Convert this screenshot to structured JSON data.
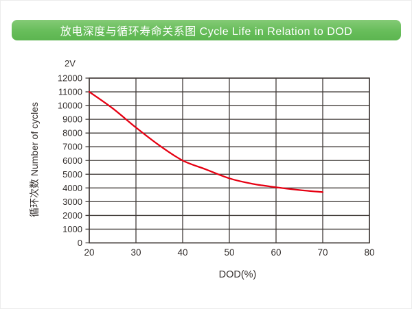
{
  "banner": {
    "title": "放电深度与循环寿命关系图 Cycle Life in Relation to DOD",
    "bg_top": "#84ca76",
    "bg_bottom": "#5cb550",
    "text_color": "#ffffff"
  },
  "chart_data": {
    "type": "line",
    "series_label": "2V",
    "x": [
      20,
      25,
      30,
      35,
      40,
      45,
      50,
      55,
      60,
      65,
      70
    ],
    "y": [
      11000,
      9800,
      8400,
      7100,
      6000,
      5350,
      4700,
      4300,
      4050,
      3850,
      3700
    ],
    "xlabel": "DOD(%)",
    "ylabel": "循环次数 Number of cycles",
    "xlim": [
      20,
      80
    ],
    "ylim": [
      0,
      12000
    ],
    "x_ticks": [
      20,
      30,
      40,
      50,
      60,
      70,
      80
    ],
    "y_ticks": [
      0,
      1000,
      2000,
      3000,
      4000,
      5000,
      6000,
      7000,
      8000,
      9000,
      10000,
      11000,
      12000
    ],
    "grid": true,
    "legend_position": "none",
    "line_color": "#e60012",
    "grid_color": "#413b38",
    "text_color": "#332e2c"
  }
}
